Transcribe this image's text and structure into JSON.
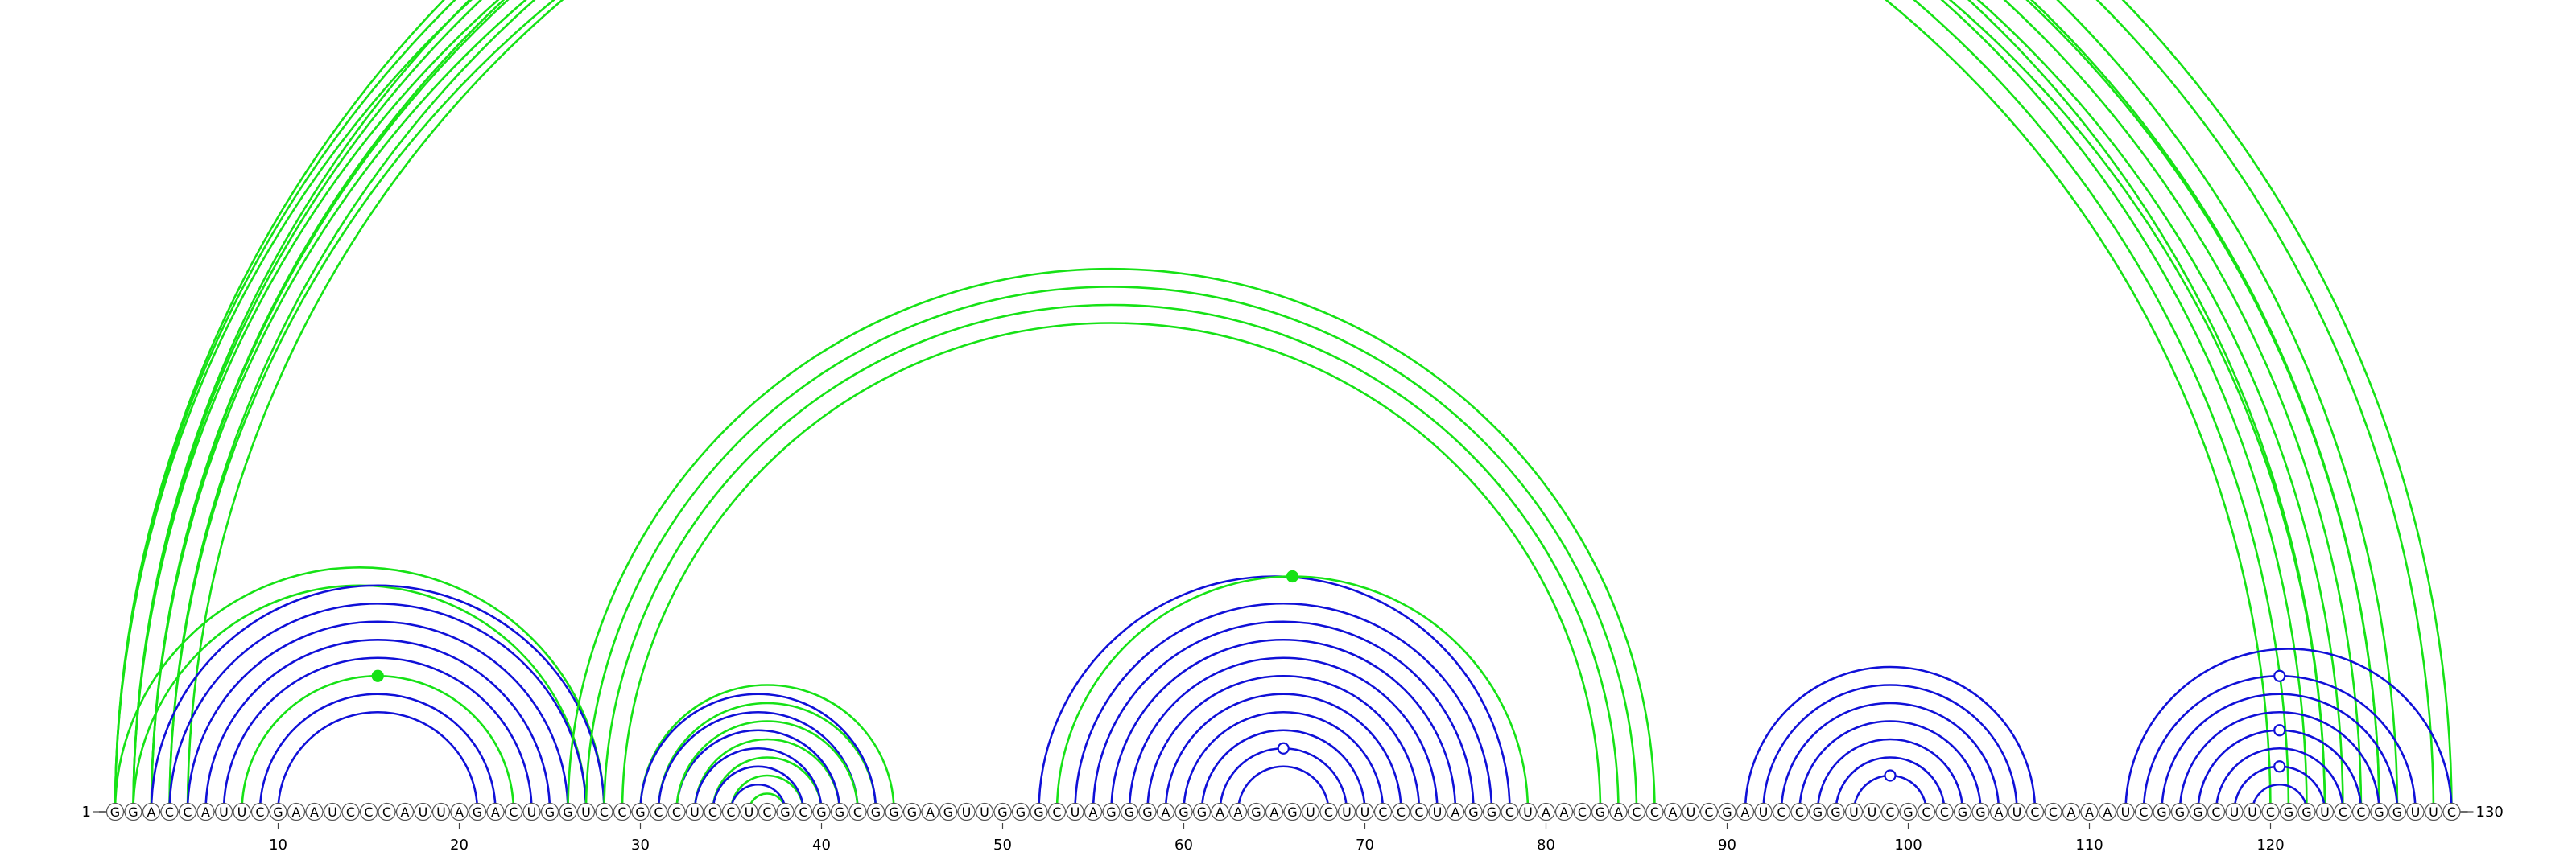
{
  "diagram": {
    "sequence": "GGACCAUUCGAAUCCCAUUAGACUGGUCCGCCUCCUCGCGGCGGGAGUUGGGCUAGGGAGGAAGAGUCUUCCCUAGGCUAACGACCAUCGAUCCGGUUCGCCGGAUCCAAAUCGGGCUUCGGUCCGGUUC",
    "start_label": "1",
    "end_label": "130",
    "tick_labels": [
      "10",
      "20",
      "30",
      "40",
      "50",
      "60",
      "70",
      "80",
      "90",
      "100",
      "110",
      "120"
    ],
    "colors": {
      "nucleotide_text": "#000000",
      "nucleotide_fill": "#ffffff",
      "nucleotide_stroke": "#555555",
      "arc_blue": "#1010d8",
      "arc_green": "#16e216"
    },
    "arcs": [
      {
        "color": "green",
        "pairs": [
          [
            1,
            123
          ],
          [
            2,
            122
          ],
          [
            3,
            121
          ],
          [
            4,
            120
          ]
        ]
      },
      {
        "color": "green",
        "pairs": [
          [
            2,
            126
          ],
          [
            3,
            125
          ],
          [
            4,
            124
          ],
          [
            5,
            123
          ]
        ]
      },
      {
        "color": "green",
        "pairs": [
          [
            1,
            127
          ],
          [
            3,
            126
          ]
        ]
      },
      {
        "color": "green",
        "pairs": [
          [
            1,
            130
          ],
          [
            2,
            129
          ]
        ]
      },
      {
        "color": "green",
        "pairs": [
          [
            1,
            28
          ],
          [
            2,
            27
          ]
        ]
      },
      {
        "color": "blue",
        "pairs": [
          [
            3,
            28
          ],
          [
            4,
            27
          ],
          [
            5,
            26
          ],
          [
            6,
            25
          ],
          [
            7,
            24
          ],
          [
            9,
            22
          ],
          [
            10,
            21
          ]
        ]
      },
      {
        "color": "green",
        "pairs": [
          [
            8,
            23
          ]
        ]
      },
      {
        "color": "green",
        "pairs": [
          [
            26,
            86
          ],
          [
            27,
            85
          ],
          [
            28,
            84
          ],
          [
            29,
            83
          ]
        ]
      },
      {
        "color": "green",
        "pairs": [
          [
            30,
            44
          ],
          [
            31,
            43
          ],
          [
            33,
            41
          ],
          [
            34,
            40
          ],
          [
            35,
            39
          ],
          [
            36,
            38
          ]
        ]
      },
      {
        "color": "blue",
        "pairs": [
          [
            30,
            43
          ],
          [
            31,
            42
          ],
          [
            32,
            41
          ],
          [
            33,
            40
          ],
          [
            34,
            39
          ],
          [
            35,
            38
          ]
        ]
      },
      {
        "color": "green",
        "pairs": [
          [
            32,
            42
          ]
        ]
      },
      {
        "color": "blue",
        "pairs": [
          [
            52,
            78
          ],
          [
            54,
            77
          ],
          [
            55,
            76
          ],
          [
            56,
            75
          ],
          [
            57,
            74
          ],
          [
            58,
            73
          ],
          [
            59,
            72
          ],
          [
            60,
            71
          ],
          [
            61,
            70
          ],
          [
            62,
            69
          ],
          [
            63,
            68
          ]
        ]
      },
      {
        "color": "green",
        "pairs": [
          [
            53,
            79
          ]
        ]
      },
      {
        "color": "blue",
        "pairs": [
          [
            91,
            107
          ],
          [
            92,
            106
          ],
          [
            93,
            105
          ],
          [
            94,
            104
          ],
          [
            95,
            103
          ],
          [
            96,
            102
          ],
          [
            97,
            101
          ]
        ]
      },
      {
        "color": "blue",
        "pairs": [
          [
            112,
            130
          ],
          [
            113,
            128
          ],
          [
            114,
            127
          ],
          [
            115,
            126
          ],
          [
            116,
            125
          ],
          [
            117,
            124
          ],
          [
            118,
            123
          ],
          [
            119,
            122
          ]
        ]
      }
    ],
    "markers": [
      {
        "pair": [
          1,
          130
        ],
        "style": "hollow",
        "color": "green"
      },
      {
        "pair": [
          8,
          23
        ],
        "style": "filled",
        "color": "green"
      },
      {
        "pair": [
          53,
          79
        ],
        "style": "filled",
        "color": "green"
      },
      {
        "pair": [
          62,
          69
        ],
        "style": "hollow",
        "color": "blue"
      },
      {
        "pair": [
          97,
          101
        ],
        "style": "hollow",
        "color": "blue"
      },
      {
        "pair": [
          113,
          128
        ],
        "style": "hollow",
        "color": "blue"
      },
      {
        "pair": [
          116,
          125
        ],
        "style": "hollow",
        "color": "blue"
      },
      {
        "pair": [
          118,
          123
        ],
        "style": "hollow",
        "color": "blue"
      }
    ]
  }
}
